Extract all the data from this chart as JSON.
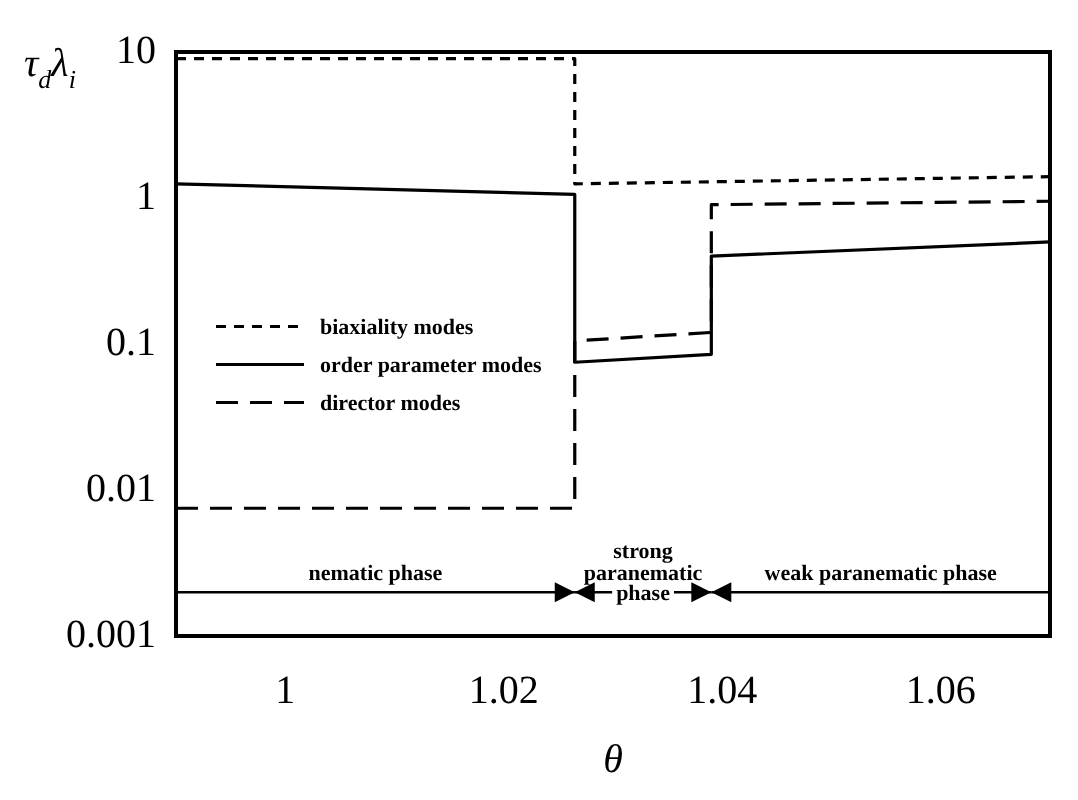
{
  "chart_data": {
    "type": "line",
    "xlabel": "θ",
    "ylabel": "τ$_{d}$λ$_{i}$",
    "log": "y",
    "grid": false,
    "legend": "left",
    "marker": "none",
    "xlim": [
      0.99,
      1.07
    ],
    "xticks": [
      1,
      1.02,
      1.04,
      1.06
    ],
    "ylim": [
      0.001,
      10
    ],
    "yticks": [
      0.001,
      0.01,
      0.1,
      1,
      10
    ],
    "series": [
      {
        "name": "biaxiality modes",
        "color": "#000000",
        "line_style": "dotted",
        "x": [
          0.99,
          1.0265,
          1.0265,
          1.07
        ],
        "values": [
          9,
          9,
          1.25,
          1.4
        ]
      },
      {
        "name": "order parameter modes",
        "color": "#000000",
        "line_style": "solid",
        "x": [
          0.99,
          1.0265,
          1.0265,
          1.039,
          1.039,
          1.07
        ],
        "values": [
          1.25,
          1.06,
          0.075,
          0.085,
          0.4,
          0.5
        ]
      },
      {
        "name": "director modes",
        "color": "#000000",
        "line_style": "dashed",
        "x": [
          0.99,
          1.0265,
          1.0265,
          1.039,
          1.039,
          1.07
        ],
        "values": [
          0.0075,
          0.0075,
          0.105,
          0.12,
          0.9,
          0.95
        ]
      }
    ],
    "annotations": [
      "nematic phase",
      "strong paranematic phase",
      "weak paranematic phase"
    ]
  }
}
